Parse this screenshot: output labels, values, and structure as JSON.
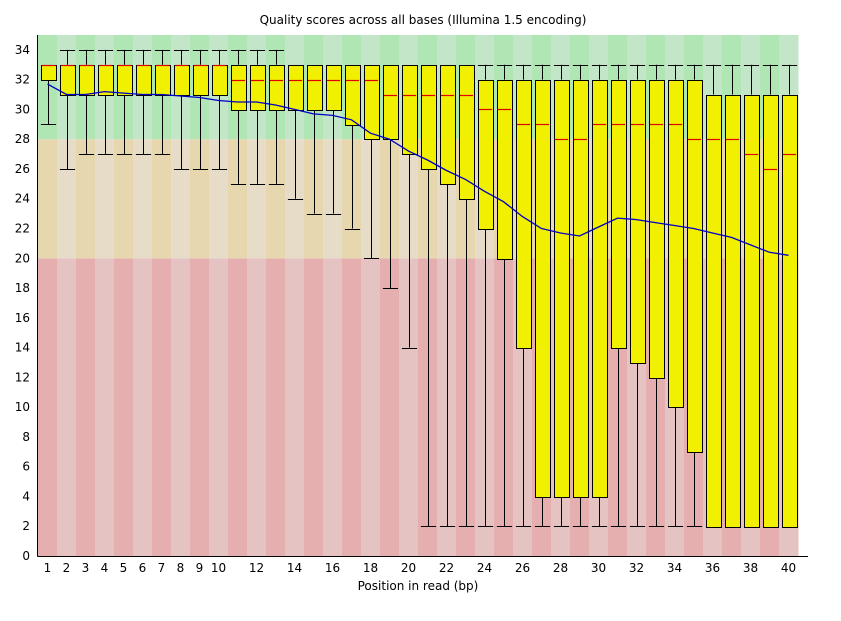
{
  "chart_data": {
    "type": "boxplot",
    "title": "Quality scores across all bases (Illumina 1.5 encoding)",
    "xlabel": "Position in read (bp)",
    "ylabel": "",
    "ylim": [
      0,
      35
    ],
    "yticks": [
      0,
      2,
      4,
      6,
      8,
      10,
      12,
      14,
      16,
      18,
      20,
      22,
      24,
      26,
      28,
      30,
      32,
      34
    ],
    "xtick_labels": [
      "1",
      "2",
      "3",
      "4",
      "5",
      "6",
      "7",
      "8",
      "9",
      "10",
      "",
      "12",
      "",
      "14",
      "",
      "16",
      "",
      "18",
      "",
      "20",
      "",
      "22",
      "",
      "24",
      "",
      "26",
      "",
      "28",
      "",
      "30",
      "",
      "32",
      "",
      "34",
      "",
      "36",
      "",
      "38",
      "",
      "40"
    ],
    "zones": [
      {
        "name": "poor",
        "from": 0,
        "to": 20,
        "colors": [
          "#e6afaf",
          "#e6c3c3"
        ]
      },
      {
        "name": "reasonable",
        "from": 20,
        "to": 28,
        "colors": [
          "#e6d7af",
          "#e6dcc8"
        ]
      },
      {
        "name": "good",
        "from": 28,
        "to": 35,
        "colors": [
          "#afe6b4",
          "#c3e6c8"
        ]
      }
    ],
    "colors": {
      "box": "#f0f000",
      "median": "#e00000",
      "mean": "#0000c8",
      "whisker": "#000000"
    },
    "legend": "none",
    "grid": false,
    "positions": [
      1,
      2,
      3,
      4,
      5,
      6,
      7,
      8,
      9,
      10,
      11,
      12,
      13,
      14,
      15,
      16,
      17,
      18,
      19,
      20,
      21,
      22,
      23,
      24,
      25,
      26,
      27,
      28,
      29,
      30,
      31,
      32,
      33,
      34,
      35,
      36,
      37,
      38,
      39,
      40
    ],
    "whisker_low": [
      29,
      26,
      27,
      27,
      27,
      27,
      27,
      26,
      26,
      26,
      25,
      25,
      25,
      24,
      23,
      23,
      22,
      20,
      18,
      14,
      2,
      2,
      2,
      2,
      2,
      2,
      2,
      2,
      2,
      2,
      2,
      2,
      2,
      2,
      2,
      2,
      2,
      2,
      2,
      2
    ],
    "q1": [
      32,
      31,
      31,
      31,
      31,
      31,
      31,
      31,
      31,
      31,
      30,
      30,
      30,
      30,
      30,
      30,
      29,
      28,
      28,
      27,
      26,
      25,
      24,
      22,
      20,
      14,
      4,
      4,
      4,
      4,
      14,
      13,
      12,
      10,
      7,
      2,
      2,
      2,
      2,
      2
    ],
    "median": [
      33,
      33,
      33,
      33,
      33,
      33,
      33,
      33,
      33,
      33,
      32,
      32,
      32,
      32,
      32,
      32,
      32,
      32,
      31,
      31,
      31,
      31,
      31,
      30,
      30,
      29,
      29,
      28,
      28,
      29,
      29,
      29,
      29,
      29,
      28,
      28,
      28,
      27,
      26,
      27
    ],
    "q3": [
      33,
      33,
      33,
      33,
      33,
      33,
      33,
      33,
      33,
      33,
      33,
      33,
      33,
      33,
      33,
      33,
      33,
      33,
      33,
      33,
      33,
      33,
      33,
      32,
      32,
      32,
      32,
      32,
      32,
      32,
      32,
      32,
      32,
      32,
      32,
      31,
      31,
      31,
      31,
      31
    ],
    "whisker_high": [
      33,
      34,
      34,
      34,
      34,
      34,
      34,
      34,
      34,
      34,
      34,
      34,
      34,
      33,
      33,
      33,
      33,
      33,
      33,
      33,
      33,
      33,
      33,
      33,
      33,
      33,
      33,
      33,
      33,
      33,
      33,
      33,
      33,
      33,
      33,
      33,
      33,
      33,
      33,
      33
    ],
    "mean": [
      31.7,
      31.0,
      31.0,
      31.2,
      31.1,
      31.0,
      31.0,
      30.9,
      30.8,
      30.6,
      30.5,
      30.5,
      30.3,
      30.0,
      29.7,
      29.6,
      29.3,
      28.4,
      28.0,
      27.2,
      26.6,
      25.9,
      25.3,
      24.5,
      23.8,
      22.8,
      22.0,
      21.7,
      21.5,
      22.1,
      22.7,
      22.6,
      22.4,
      22.2,
      22.0,
      21.7,
      21.4,
      20.9,
      20.4,
      20.2
    ]
  }
}
